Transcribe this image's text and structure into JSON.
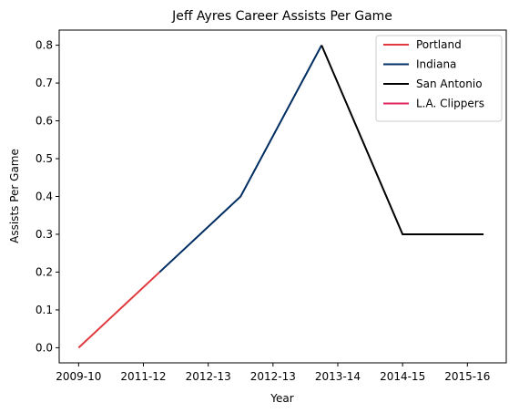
{
  "chart_data": {
    "type": "line",
    "title": "Jeff Ayres Career Assists Per Game",
    "xlabel": "Year",
    "ylabel": "Assists Per Game",
    "x_ticks": [
      "2009-10",
      "2011-12",
      "2012-13",
      "2012-13",
      "2013-14",
      "2014-15",
      "2015-16"
    ],
    "ylim": [
      -0.04,
      0.84
    ],
    "y_ticks": [
      0.0,
      0.1,
      0.2,
      0.3,
      0.4,
      0.5,
      0.6,
      0.7,
      0.8
    ],
    "y_tick_labels": [
      "0.0",
      "0.1",
      "0.2",
      "0.3",
      "0.4",
      "0.5",
      "0.6",
      "0.7",
      "0.8"
    ],
    "grid": false,
    "legend_position": "top-right",
    "series": [
      {
        "name": "Portland",
        "color": "#e03a3e",
        "x": [
          0,
          1.25
        ],
        "y": [
          0.0,
          0.2
        ]
      },
      {
        "name": "Indiana",
        "color": "#002d62",
        "x": [
          1.25,
          2.5,
          3.75
        ],
        "y": [
          0.2,
          0.4,
          0.8
        ]
      },
      {
        "name": "San Antonio",
        "color": "#000000",
        "x": [
          3.75,
          5.0,
          6.25
        ],
        "y": [
          0.8,
          0.3,
          0.3
        ]
      },
      {
        "name": "L.A. Clippers",
        "color": "#e0245e",
        "x": [],
        "y": []
      }
    ]
  }
}
